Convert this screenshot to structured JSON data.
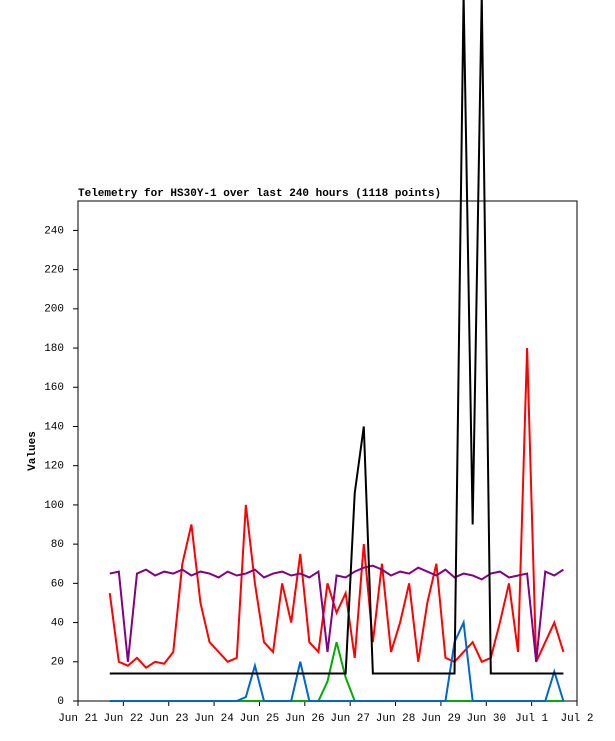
{
  "chart_data": {
    "type": "line",
    "title": "Telemetry for HS30Y-1 over last 240 hours (1118 points)",
    "y_label": "Values",
    "x": [
      0.7,
      0.9,
      1.1,
      1.3,
      1.5,
      1.7,
      1.9,
      2.1,
      2.3,
      2.5,
      2.7,
      2.9,
      3.1,
      3.3,
      3.5,
      3.7,
      3.9,
      4.1,
      4.3,
      4.5,
      4.7,
      4.9,
      5.1,
      5.3,
      5.5,
      5.7,
      5.9,
      6.1,
      6.3,
      6.5,
      6.7,
      6.9,
      7.1,
      7.3,
      7.5,
      7.7,
      7.9,
      8.1,
      8.3,
      8.5,
      8.7,
      8.9,
      9.1,
      9.3,
      9.5,
      9.7,
      9.9,
      10.1,
      10.3,
      10.5,
      10.7
    ],
    "series": [
      {
        "name": "red",
        "color": "#ff0000",
        "values": [
          55,
          20,
          18,
          22,
          17,
          20,
          19,
          25,
          70,
          90,
          50,
          30,
          25,
          20,
          22,
          100,
          60,
          30,
          25,
          60,
          40,
          75,
          30,
          25,
          60,
          45,
          55,
          22,
          80,
          30,
          70,
          25,
          40,
          60,
          20,
          50,
          70,
          22,
          20,
          25,
          30,
          20,
          22,
          40,
          60,
          25,
          180,
          20,
          30,
          40,
          25
        ]
      },
      {
        "name": "green",
        "color": "#00aa00",
        "values": [
          0,
          0,
          0,
          0,
          0,
          0,
          0,
          0,
          0,
          0,
          0,
          0,
          0,
          0,
          0,
          0,
          0,
          0,
          0,
          0,
          0,
          0,
          0,
          0,
          10,
          30,
          12,
          0,
          0,
          0,
          0,
          0,
          0,
          0,
          0,
          0,
          0,
          0,
          0,
          0,
          0,
          0,
          0,
          0,
          0,
          0,
          0,
          0,
          0,
          0,
          0
        ]
      },
      {
        "name": "blue",
        "color": "#0066cc",
        "values": [
          0,
          0,
          0,
          0,
          0,
          0,
          0,
          0,
          0,
          0,
          0,
          0,
          0,
          0,
          0,
          2,
          18,
          0,
          0,
          0,
          0,
          20,
          0,
          0,
          0,
          0,
          0,
          0,
          0,
          0,
          0,
          0,
          0,
          0,
          0,
          0,
          0,
          0,
          30,
          40,
          0,
          0,
          0,
          0,
          0,
          0,
          0,
          0,
          0,
          15,
          0
        ]
      },
      {
        "name": "purple",
        "color": "#800080",
        "values": [
          65,
          66,
          20,
          65,
          67,
          64,
          66,
          65,
          67,
          64,
          66,
          65,
          63,
          66,
          64,
          65,
          67,
          63,
          65,
          66,
          64,
          65,
          63,
          66,
          25,
          64,
          63,
          66,
          68,
          69,
          67,
          64,
          66,
          65,
          68,
          66,
          64,
          67,
          63,
          65,
          64,
          62,
          65,
          66,
          63,
          64,
          65,
          20,
          66,
          64,
          67
        ]
      },
      {
        "name": "black",
        "color": "#000000",
        "values": [
          14,
          14,
          14,
          14,
          14,
          14,
          14,
          14,
          14,
          14,
          14,
          14,
          14,
          14,
          14,
          14,
          14,
          14,
          14,
          14,
          14,
          14,
          14,
          14,
          14,
          14,
          14,
          106,
          140,
          14,
          14,
          14,
          14,
          14,
          14,
          14,
          14,
          14,
          14,
          360,
          90,
          360,
          14,
          14,
          14,
          14,
          14,
          14,
          14,
          14,
          14
        ]
      }
    ],
    "xlim": [
      0,
      11
    ],
    "xticks": [
      {
        "value": 0,
        "label": "Jun 21"
      },
      {
        "value": 1,
        "label": "Jun 22"
      },
      {
        "value": 2,
        "label": "Jun 23"
      },
      {
        "value": 3,
        "label": "Jun 24"
      },
      {
        "value": 4,
        "label": "Jun 25"
      },
      {
        "value": 5,
        "label": "Jun 26"
      },
      {
        "value": 6,
        "label": "Jun 27"
      },
      {
        "value": 7,
        "label": "Jun 28"
      },
      {
        "value": 8,
        "label": "Jun 29"
      },
      {
        "value": 9,
        "label": "Jun 30"
      },
      {
        "value": 10,
        "label": "Jul 1"
      },
      {
        "value": 11,
        "label": "Jul 2"
      }
    ],
    "ylim": [
      0,
      255
    ],
    "yticks": [
      0,
      20,
      40,
      60,
      80,
      100,
      120,
      140,
      160,
      180,
      200,
      220,
      240
    ]
  }
}
